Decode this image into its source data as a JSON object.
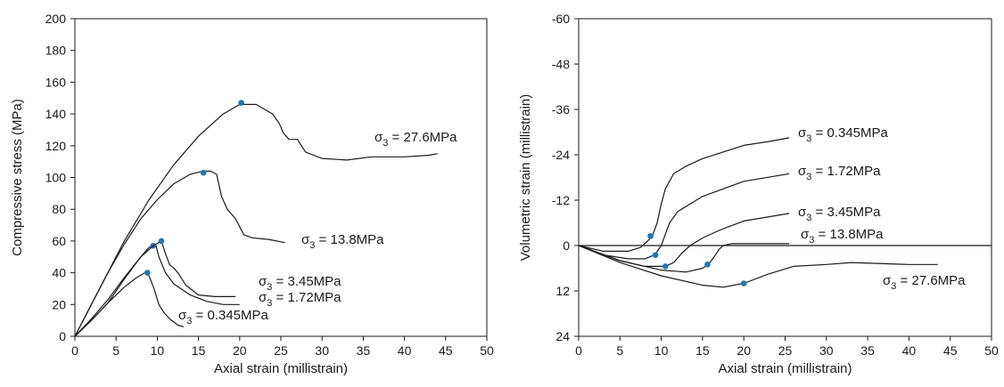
{
  "chart_data": [
    {
      "type": "line",
      "title": "",
      "xlabel": "Axial strain (millistrain)",
      "ylabel": "Compressive stress (MPa)",
      "xlim": [
        0,
        50
      ],
      "ylim": [
        0,
        200
      ],
      "y_reversed": false,
      "x_ticks": [
        "0",
        "5",
        "10",
        "15",
        "20",
        "25",
        "30",
        "35",
        "40",
        "45",
        "50"
      ],
      "y_ticks": [
        "0",
        "20",
        "40",
        "60",
        "80",
        "100",
        "120",
        "140",
        "160",
        "180",
        "200"
      ],
      "grid": false,
      "legend": "none",
      "line_color": "#1a1a1a",
      "marker_color": "#1f77b4",
      "series": [
        {
          "label_base": "σ",
          "label_sub": "3",
          "label_value": " = 0.345MPa",
          "x": [
            0,
            2,
            4,
            6,
            7.5,
            8.5,
            9.0,
            9.6,
            10.2,
            10.8,
            11.5,
            12.5,
            13.2
          ],
          "y": [
            0,
            10,
            21,
            31,
            37,
            40,
            38,
            30,
            20,
            15,
            11,
            7,
            6
          ],
          "peak": [
            8.8,
            40
          ]
        },
        {
          "label_base": "σ",
          "label_sub": "3",
          "label_value": " = 1.72MPa",
          "x": [
            0,
            2,
            4,
            6,
            8,
            9,
            9.8,
            10.2,
            11,
            12,
            14,
            16,
            18,
            20
          ],
          "y": [
            0,
            10,
            21,
            36,
            50,
            56,
            58,
            50,
            40,
            33,
            26,
            22,
            20,
            20
          ],
          "peak": [
            9.5,
            57
          ]
        },
        {
          "label_base": "σ",
          "label_sub": "3",
          "label_value": " = 3.45MPa",
          "x": [
            0,
            2,
            4,
            6,
            8,
            9.5,
            10.5,
            11,
            11.5,
            12,
            12.5,
            13.5,
            15,
            17,
            19.5
          ],
          "y": [
            0,
            11,
            23,
            37,
            50,
            57,
            60,
            52,
            45,
            43,
            40,
            32,
            26,
            25,
            25
          ],
          "peak": [
            10.5,
            60
          ]
        },
        {
          "label_base": "σ",
          "label_sub": "3",
          "label_value": " = 13.8MPa",
          "x": [
            0,
            2,
            4,
            6,
            8,
            10,
            12,
            14,
            15.5,
            16.5,
            17.2,
            17.8,
            18.5,
            19.5,
            20.5,
            21.5,
            23.5,
            25.5
          ],
          "y": [
            0,
            20,
            40,
            58,
            74,
            86,
            96,
            102,
            104,
            104,
            102,
            88,
            80,
            74,
            64,
            62,
            61,
            59
          ],
          "peak": [
            15.6,
            103
          ]
        },
        {
          "label_base": "σ",
          "label_sub": "3",
          "label_value": " = 27.6MPa",
          "x": [
            0,
            3,
            6,
            9,
            12,
            15,
            18,
            20,
            22,
            24,
            24.8,
            25.3,
            26,
            27,
            28,
            30,
            33,
            36,
            40,
            43,
            44
          ],
          "y": [
            0,
            30,
            60,
            86,
            108,
            126,
            140,
            146,
            146,
            140,
            134,
            128,
            124,
            124,
            116,
            112,
            111,
            113,
            113,
            114,
            115
          ],
          "peak": [
            20.2,
            147
          ]
        }
      ]
    },
    {
      "type": "line",
      "title": "",
      "xlabel": "Axial strain (millistrain)",
      "ylabel": "Volumetric strain (millistrain)",
      "xlim": [
        0,
        50
      ],
      "ylim": [
        24,
        -60
      ],
      "y_reversed": true,
      "x_ticks": [
        "0",
        "5",
        "10",
        "15",
        "20",
        "25",
        "30",
        "35",
        "40",
        "45",
        "50"
      ],
      "y_ticks": [
        "-60",
        "-48",
        "-36",
        "-24",
        "-12",
        "0",
        "12",
        "24"
      ],
      "grid": false,
      "legend": "none",
      "zero_line": true,
      "line_color": "#1a1a1a",
      "marker_color": "#1f77b4",
      "series": [
        {
          "label_base": "σ",
          "label_sub": "3",
          "label_value": " = 0.345MPa",
          "x": [
            0,
            3,
            6,
            7.5,
            8.5,
            9,
            9.5,
            10,
            10.5,
            11.5,
            13,
            15,
            20,
            23,
            25.5
          ],
          "y": [
            0,
            1.5,
            1.5,
            0.5,
            -1.5,
            -3,
            -6,
            -11,
            -15,
            -19,
            -21,
            -23,
            -26.5,
            -27.5,
            -28.5
          ],
          "peak": [
            8.7,
            -2.5
          ]
        },
        {
          "label_base": "σ",
          "label_sub": "3",
          "label_value": " = 1.72MPa",
          "x": [
            0,
            3,
            6,
            8,
            9.2,
            10,
            10.5,
            11,
            12,
            15,
            20,
            25.5
          ],
          "y": [
            0,
            2.5,
            3.5,
            3.5,
            2.5,
            0,
            -3,
            -6,
            -9,
            -13,
            -17,
            -19
          ],
          "peak": [
            9.3,
            2.5
          ]
        },
        {
          "label_base": "σ",
          "label_sub": "3",
          "label_value": " = 3.45MPa",
          "x": [
            0,
            5,
            8,
            10.5,
            11.5,
            12.5,
            13.5,
            15,
            17,
            20,
            25.5
          ],
          "y": [
            0,
            4,
            5.5,
            5.5,
            4.5,
            2,
            0,
            -2,
            -4,
            -6.5,
            -8.5
          ],
          "peak": [
            10.5,
            5.5
          ]
        },
        {
          "label_base": "σ",
          "label_sub": "3",
          "label_value": " = 13.8MPa",
          "x": [
            0,
            5,
            10,
            13,
            15,
            15.7,
            16.4,
            17,
            17.5,
            18.5,
            20,
            25.5
          ],
          "y": [
            0,
            4,
            6.5,
            7,
            6,
            5,
            3,
            1,
            0,
            -0.5,
            -0.5,
            -0.5
          ],
          "peak": [
            15.6,
            5
          ]
        },
        {
          "label_base": "σ",
          "label_sub": "3",
          "label_value": " = 27.6MPa",
          "x": [
            0,
            5,
            10,
            15,
            17.5,
            20,
            23,
            26,
            30,
            33,
            37,
            40,
            43.5
          ],
          "y": [
            0,
            4.5,
            8,
            10.5,
            11,
            10,
            7.5,
            5.5,
            5,
            4.5,
            4.8,
            5,
            5
          ],
          "peak": [
            20,
            10
          ]
        }
      ]
    }
  ]
}
